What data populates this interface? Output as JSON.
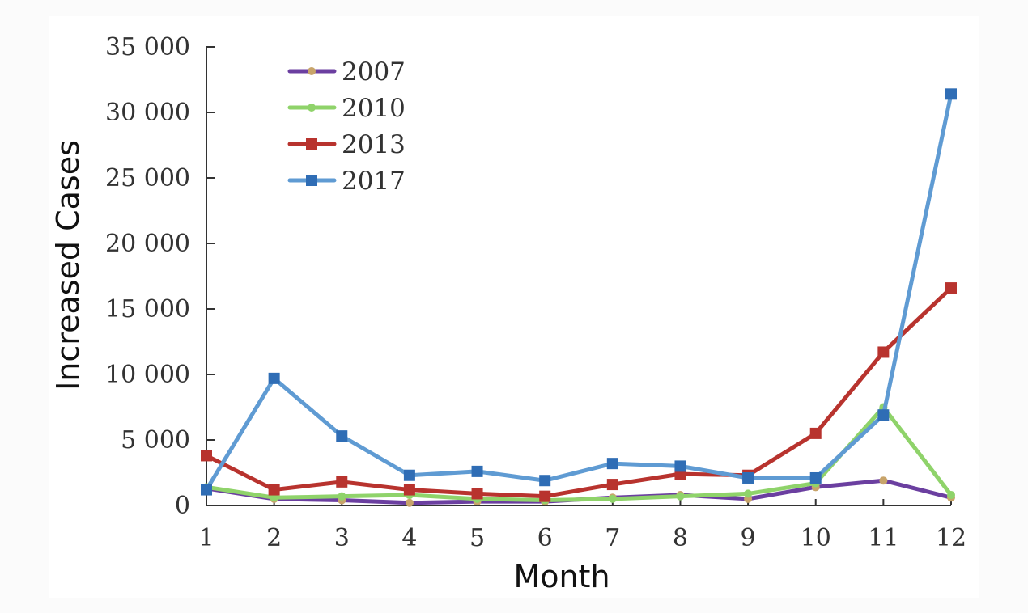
{
  "chart_data": {
    "type": "line",
    "title": "",
    "xlabel": "Month",
    "ylabel": "Increased Cases",
    "categories": [
      1,
      2,
      3,
      4,
      5,
      6,
      7,
      8,
      9,
      10,
      11,
      12
    ],
    "x_tick_labels": [
      "1",
      "2",
      "3",
      "4",
      "5",
      "6",
      "7",
      "8",
      "9",
      "10",
      "11",
      "12"
    ],
    "y_ticks": [
      0,
      5000,
      10000,
      15000,
      20000,
      25000,
      30000,
      35000
    ],
    "y_tick_labels": [
      "0",
      "5 000",
      "10 000",
      "15 000",
      "20 000",
      "25 000",
      "30 000",
      "35 000"
    ],
    "ylim": [
      0,
      35000
    ],
    "grid": false,
    "legend_position": "top-left",
    "series": [
      {
        "name": "2007",
        "color": "#6b3fa0",
        "marker_color": "#c8a46a",
        "marker": "dot",
        "values": [
          1300,
          500,
          400,
          200,
          300,
          300,
          600,
          800,
          500,
          1400,
          1900,
          600
        ]
      },
      {
        "name": "2010",
        "color": "#8fd36a",
        "marker_color": "#8fd36a",
        "marker": "dot",
        "values": [
          1400,
          600,
          700,
          800,
          500,
          400,
          500,
          700,
          900,
          1700,
          7500,
          800
        ]
      },
      {
        "name": "2013",
        "color": "#b8332e",
        "marker_color": "#b8332e",
        "marker": "square",
        "values": [
          3800,
          1200,
          1800,
          1200,
          900,
          700,
          1600,
          2400,
          2300,
          5500,
          11700,
          16600
        ]
      },
      {
        "name": "2017",
        "color": "#5f9bd3",
        "marker_color": "#2f6db5",
        "marker": "square",
        "values": [
          1200,
          9700,
          5300,
          2300,
          2600,
          1900,
          3200,
          3000,
          2100,
          2100,
          6900,
          31400
        ]
      }
    ]
  }
}
